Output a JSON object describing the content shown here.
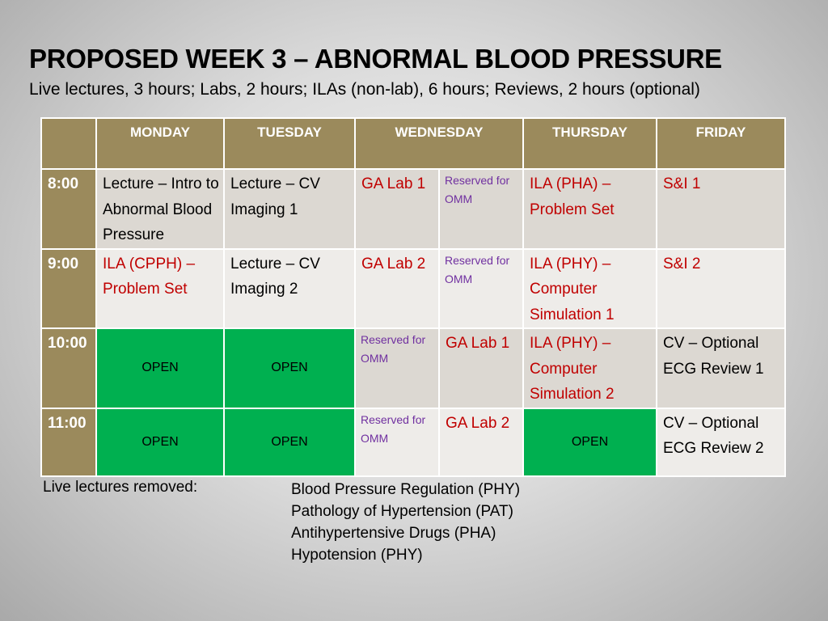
{
  "title": "PROPOSED WEEK 3 – ABNORMAL BLOOD PRESSURE",
  "subtitle": "Live lectures, 3 hours; Labs, 2 hours; ILAs (non-lab), 6 hours; Reviews, 2 hours (optional)",
  "table": {
    "days": [
      "MONDAY",
      "TUESDAY",
      "WEDNESDAY",
      "THURSDAY",
      "FRIDAY"
    ],
    "times": [
      "8:00",
      "9:00",
      "10:00",
      "11:00"
    ],
    "rows": [
      {
        "monday": "Lecture – Intro to Abnormal Blood Pressure",
        "tuesday": "Lecture – CV Imaging 1",
        "wednesday_a": "GA Lab 1",
        "wednesday_b": "Reserved for OMM",
        "thursday": "ILA (PHA) – Problem Set",
        "friday": "S&I 1"
      },
      {
        "monday": "ILA (CPPH) – Problem Set",
        "tuesday": "Lecture – CV Imaging 2",
        "wednesday_a": "GA Lab 2",
        "wednesday_b": "Reserved for OMM",
        "thursday": "ILA (PHY) – Computer Simulation 1",
        "friday": "S&I 2"
      },
      {
        "monday": "OPEN",
        "tuesday": "OPEN",
        "wednesday_a": "Reserved for OMM",
        "wednesday_b": "GA Lab 1",
        "thursday": "ILA (PHY) – Computer Simulation 2",
        "friday": "CV – Optional ECG Review 1"
      },
      {
        "monday": "OPEN",
        "tuesday": "OPEN",
        "wednesday_a": "Reserved for OMM",
        "wednesday_b": "GA Lab 2",
        "thursday": "OPEN",
        "friday": "CV – Optional ECG Review 2"
      }
    ]
  },
  "removed": {
    "label": "Live lectures removed:",
    "items": [
      "Blood Pressure Regulation (PHY)",
      "Pathology of Hypertension (PAT)",
      "Antihypertensive Drugs (PHA)",
      "Hypotension (PHY)"
    ]
  },
  "colors": {
    "header_bg": "#9b8a5c",
    "open_green": "#00b050",
    "text_red": "#c00000",
    "text_purple": "#7030a0",
    "row_shade_dark": "#dcd8d2",
    "row_shade_light": "#eeece9"
  }
}
